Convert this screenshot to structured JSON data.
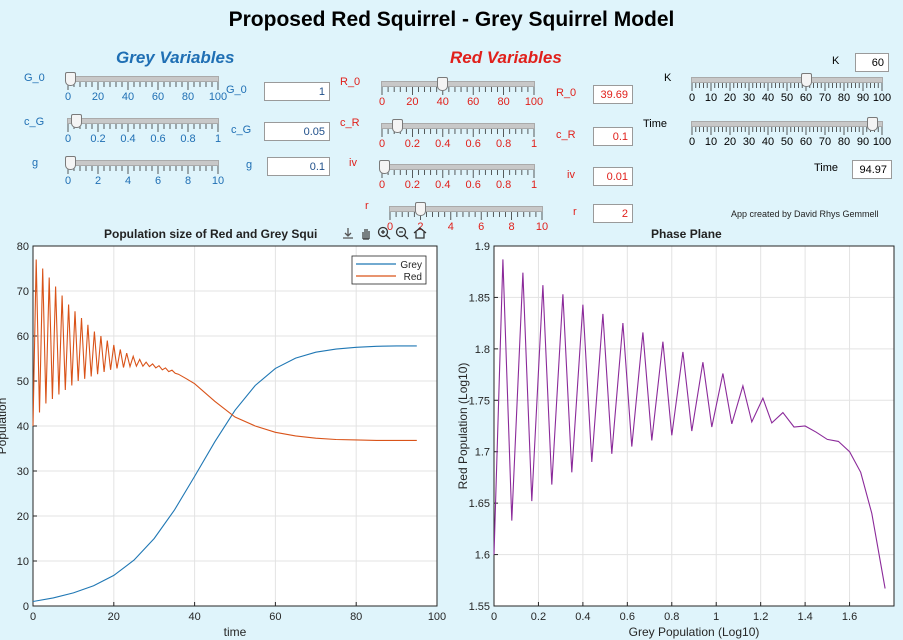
{
  "title": "Proposed Red Squirrel - Grey Squirrel Model",
  "grey_panel": {
    "heading": "Grey Variables",
    "color": "#1f6fb4",
    "sliders": [
      {
        "id": "G_0",
        "label": "G_0",
        "box_label": "G_0",
        "value": "1",
        "ticks": [
          "0",
          "20",
          "40",
          "60",
          "80",
          "100"
        ],
        "min": 0,
        "max": 100,
        "num": 1
      },
      {
        "id": "c_G",
        "label": "c_G",
        "box_label": "c_G",
        "value": "0.05",
        "ticks": [
          "0",
          "0.2",
          "0.4",
          "0.6",
          "0.8",
          "1"
        ],
        "min": 0,
        "max": 1,
        "num": 0.05
      },
      {
        "id": "g",
        "label": "g",
        "box_label": "g",
        "value": "0.1",
        "ticks": [
          "0",
          "2",
          "4",
          "6",
          "8",
          "10"
        ],
        "min": 0,
        "max": 10,
        "num": 0.1
      }
    ]
  },
  "red_panel": {
    "heading": "Red Variables",
    "color": "#e0201b",
    "sliders": [
      {
        "id": "R_0",
        "label": "R_0",
        "box_label": "R_0",
        "value": "39.69",
        "ticks": [
          "0",
          "20",
          "40",
          "60",
          "80",
          "100"
        ],
        "min": 0,
        "max": 100,
        "num": 39.69
      },
      {
        "id": "c_R",
        "label": "c_R",
        "box_label": "c_R",
        "value": "0.1",
        "ticks": [
          "0",
          "0.2",
          "0.4",
          "0.6",
          "0.8",
          "1"
        ],
        "min": 0,
        "max": 1,
        "num": 0.1
      },
      {
        "id": "iv",
        "label": "iv",
        "box_label": "iv",
        "value": "0.01",
        "ticks": [
          "0",
          "0.2",
          "0.4",
          "0.6",
          "0.8",
          "1"
        ],
        "min": 0,
        "max": 1,
        "num": 0.01
      },
      {
        "id": "r",
        "label": "r",
        "box_label": "r",
        "value": "2",
        "ticks": [
          "0",
          "2",
          "4",
          "6",
          "8",
          "10"
        ],
        "min": 0,
        "max": 10,
        "num": 2
      }
    ]
  },
  "other_panel": {
    "sliders": [
      {
        "id": "K",
        "label": "K",
        "box_label": "K",
        "value": "60",
        "ticks": [
          "0",
          "10",
          "20",
          "30",
          "40",
          "50",
          "60",
          "70",
          "80",
          "90",
          "100"
        ],
        "min": 0,
        "max": 100,
        "num": 60
      },
      {
        "id": "Time",
        "label": "Time",
        "box_label": "Time",
        "value": "94.97",
        "ticks": [
          "0",
          "10",
          "20",
          "30",
          "40",
          "50",
          "60",
          "70",
          "80",
          "90",
          "100"
        ],
        "min": 0,
        "max": 100,
        "num": 94.97
      }
    ]
  },
  "credit": "App created by David Rhys Gemmell",
  "toolbar": [
    "export-icon",
    "pan-icon",
    "zoom-in-icon",
    "zoom-out-icon",
    "home-icon"
  ],
  "chart_data": [
    {
      "type": "line",
      "title": "Population size of Red and Grey Squi",
      "xlabel": "time",
      "ylabel": "Population",
      "xlim": [
        0,
        100
      ],
      "ylim": [
        0,
        80
      ],
      "xticks": [
        "0",
        "20",
        "40",
        "60",
        "80",
        "100"
      ],
      "yticks": [
        "0",
        "10",
        "20",
        "30",
        "40",
        "50",
        "60",
        "70",
        "80"
      ],
      "grid": true,
      "legend": "top-right",
      "series": [
        {
          "name": "Grey",
          "color": "#1f77b4",
          "x": [
            0,
            5,
            10,
            15,
            20,
            25,
            30,
            35,
            40,
            45,
            50,
            55,
            60,
            65,
            70,
            75,
            80,
            85,
            90,
            95
          ],
          "y": [
            1,
            1.8,
            2.9,
            4.5,
            6.8,
            10.2,
            15.0,
            21.3,
            28.8,
            36.5,
            43.5,
            49.0,
            52.8,
            55.1,
            56.4,
            57.1,
            57.5,
            57.7,
            57.8,
            57.8
          ]
        },
        {
          "name": "Red",
          "color": "#d95319",
          "x": [
            0,
            0.8,
            1.6,
            2.4,
            3.2,
            4,
            4.8,
            5.6,
            6.4,
            7.2,
            8,
            8.8,
            9.6,
            10.4,
            11.2,
            12,
            12.8,
            13.6,
            14.4,
            15.2,
            16,
            16.8,
            17.6,
            18.4,
            19.2,
            20,
            20.8,
            21.6,
            22.4,
            23.2,
            24,
            24.8,
            25.6,
            26.4,
            27.2,
            28,
            28.8,
            29.6,
            30.4,
            31.2,
            32,
            32.8,
            33.6,
            34.4,
            35.2,
            36,
            38,
            40,
            45,
            50,
            55,
            60,
            65,
            70,
            75,
            80,
            85,
            90,
            95
          ],
          "y": [
            40,
            77,
            43,
            75,
            45,
            73,
            46,
            71,
            47,
            69,
            48,
            67,
            49,
            65.5,
            50,
            64,
            50.5,
            62.5,
            51,
            61,
            51.5,
            60,
            52,
            59,
            52.5,
            58,
            52.8,
            57,
            53,
            56.2,
            53.2,
            55.5,
            53.3,
            54.8,
            53.3,
            54.2,
            53.2,
            53.8,
            52.9,
            53.4,
            52.5,
            52.9,
            52.1,
            52.4,
            51.7,
            51.5,
            50.5,
            49.4,
            45.5,
            42.0,
            40.0,
            38.6,
            37.8,
            37.3,
            37.0,
            36.9,
            36.8,
            36.8,
            36.8
          ]
        }
      ]
    },
    {
      "type": "line",
      "title": "Phase Plane",
      "xlabel": "Grey Population (Log10)",
      "ylabel": "Red Population (Log10)",
      "xlim": [
        0,
        1.8
      ],
      "ylim": [
        1.55,
        1.9
      ],
      "xticks": [
        "0",
        "0.2",
        "0.4",
        "0.6",
        "0.8",
        "1",
        "1.2",
        "1.4",
        "1.6"
      ],
      "yticks": [
        "1.55",
        "1.6",
        "1.65",
        "1.7",
        "1.75",
        "1.8",
        "1.85",
        "1.9"
      ],
      "grid": true,
      "series": [
        {
          "name": "",
          "color": "#8b2a9a",
          "x": [
            0,
            0.04,
            0.08,
            0.13,
            0.17,
            0.22,
            0.26,
            0.31,
            0.35,
            0.4,
            0.44,
            0.49,
            0.53,
            0.58,
            0.62,
            0.67,
            0.71,
            0.76,
            0.8,
            0.85,
            0.89,
            0.94,
            0.98,
            1.03,
            1.07,
            1.12,
            1.16,
            1.21,
            1.25,
            1.3,
            1.35,
            1.4,
            1.45,
            1.5,
            1.55,
            1.6,
            1.65,
            1.7,
            1.76
          ],
          "y": [
            1.6,
            1.887,
            1.633,
            1.874,
            1.652,
            1.862,
            1.668,
            1.853,
            1.68,
            1.843,
            1.69,
            1.834,
            1.698,
            1.825,
            1.705,
            1.816,
            1.711,
            1.807,
            1.716,
            1.797,
            1.72,
            1.787,
            1.724,
            1.776,
            1.727,
            1.764,
            1.729,
            1.752,
            1.728,
            1.738,
            1.724,
            1.725,
            1.719,
            1.712,
            1.71,
            1.7,
            1.68,
            1.64,
            1.567
          ]
        }
      ]
    }
  ]
}
